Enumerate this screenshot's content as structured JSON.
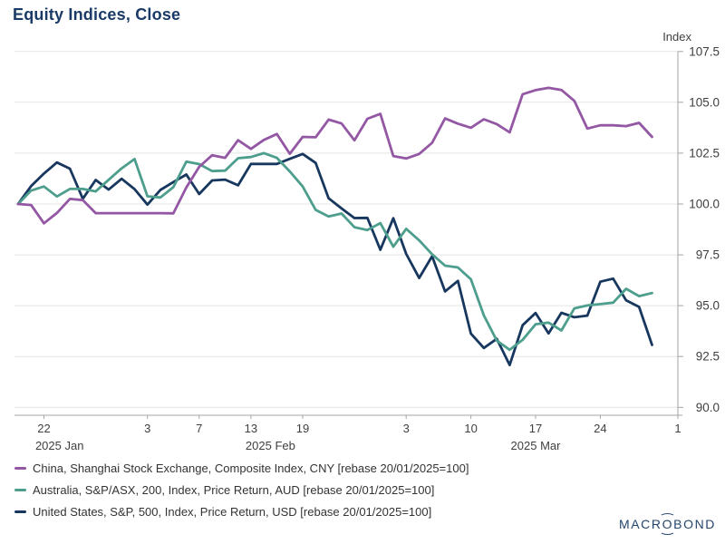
{
  "chart_data": {
    "type": "line",
    "title": "Equity Indices, Close",
    "title_color": "#1A3A67",
    "grid": true,
    "legend_position": "bottom-left",
    "y_axis": {
      "unit": "Index",
      "side": "right",
      "min": 90.0,
      "max": 107.5,
      "tick_step": 2.5,
      "ticks": [
        107.5,
        105.0,
        102.5,
        100.0,
        97.5,
        95.0,
        92.5,
        90.0
      ]
    },
    "x_axis": {
      "scale": "business-days",
      "start_date": "2025-01-20",
      "end_date": "2025-04-01",
      "day_ticks": [
        {
          "label": "22",
          "i": 2
        },
        {
          "label": "3",
          "i": 10
        },
        {
          "label": "7",
          "i": 14
        },
        {
          "label": "13",
          "i": 18
        },
        {
          "label": "19",
          "i": 22
        },
        {
          "label": "3",
          "i": 30
        },
        {
          "label": "10",
          "i": 35
        },
        {
          "label": "17",
          "i": 40
        },
        {
          "label": "24",
          "i": 45
        },
        {
          "label": "1",
          "i": 51
        }
      ],
      "month_labels": [
        {
          "label": "2025 Jan",
          "center_i": 3.2
        },
        {
          "label": "2025 Feb",
          "center_i": 19.5
        },
        {
          "label": "2025 Mar",
          "center_i": 40.0
        }
      ]
    },
    "dates": [
      "2025-01-20",
      "2025-01-21",
      "2025-01-22",
      "2025-01-23",
      "2025-01-24",
      "2025-01-27",
      "2025-01-28",
      "2025-01-29",
      "2025-01-30",
      "2025-01-31",
      "2025-02-03",
      "2025-02-04",
      "2025-02-05",
      "2025-02-06",
      "2025-02-07",
      "2025-02-10",
      "2025-02-11",
      "2025-02-12",
      "2025-02-13",
      "2025-02-14",
      "2025-02-17",
      "2025-02-18",
      "2025-02-19",
      "2025-02-20",
      "2025-02-21",
      "2025-02-24",
      "2025-02-25",
      "2025-02-26",
      "2025-02-27",
      "2025-02-28",
      "2025-03-03",
      "2025-03-04",
      "2025-03-05",
      "2025-03-06",
      "2025-03-07",
      "2025-03-10",
      "2025-03-11",
      "2025-03-12",
      "2025-03-13",
      "2025-03-14",
      "2025-03-17",
      "2025-03-18",
      "2025-03-19",
      "2025-03-20",
      "2025-03-21",
      "2025-03-24",
      "2025-03-25",
      "2025-03-26",
      "2025-03-27",
      "2025-03-28"
    ],
    "series": [
      {
        "name": "China, Shanghai Stock Exchange, Composite Index, CNY [rebase 20/01/2025=100]",
        "color": "#9357A4",
        "values": [
          100.0,
          99.95,
          99.05,
          99.56,
          100.25,
          100.19,
          99.55,
          99.55,
          99.55,
          99.55,
          99.55,
          99.55,
          99.54,
          100.81,
          101.83,
          102.4,
          102.27,
          103.14,
          102.71,
          103.15,
          103.44,
          102.47,
          103.3,
          103.28,
          104.15,
          103.96,
          103.13,
          104.19,
          104.43,
          102.36,
          102.24,
          102.46,
          103.01,
          104.21,
          103.95,
          103.75,
          104.17,
          103.93,
          103.52,
          105.4,
          105.6,
          105.71,
          105.61,
          105.07,
          103.71,
          103.87,
          103.87,
          103.83,
          103.99,
          103.3
        ]
      },
      {
        "name": "Australia, S&P/ASX, 200, Index, Price Return, AUD [rebase 20/01/2025=100]",
        "color": "#4D9E8C",
        "values": [
          100.0,
          100.66,
          100.86,
          100.37,
          100.74,
          100.74,
          100.62,
          101.19,
          101.75,
          102.21,
          100.38,
          100.32,
          100.83,
          102.08,
          101.96,
          101.62,
          101.64,
          102.25,
          102.31,
          102.5,
          102.27,
          101.6,
          100.86,
          99.71,
          99.39,
          99.53,
          98.86,
          98.72,
          99.06,
          97.9,
          98.78,
          98.21,
          97.53,
          96.97,
          96.88,
          96.3,
          94.52,
          93.28,
          92.83,
          93.32,
          94.09,
          94.17,
          93.78,
          94.87,
          95.01,
          95.08,
          95.15,
          95.83,
          95.47,
          95.62
        ]
      },
      {
        "name": "United States, S&P, 500, Index, Price Return, USD [rebase 20/01/2025=100]",
        "color": "#17375E",
        "values": [
          100.0,
          100.88,
          101.5,
          102.04,
          101.74,
          100.26,
          101.18,
          100.71,
          101.24,
          100.73,
          99.97,
          100.69,
          101.08,
          101.45,
          100.49,
          101.16,
          101.2,
          100.92,
          101.97,
          101.97,
          101.97,
          102.22,
          102.46,
          102.02,
          100.28,
          99.78,
          99.31,
          99.32,
          97.75,
          99.3,
          97.55,
          96.36,
          97.43,
          95.7,
          96.22,
          93.63,
          92.92,
          93.37,
          92.08,
          94.04,
          94.64,
          93.64,
          94.65,
          94.43,
          94.51,
          96.18,
          96.33,
          95.26,
          94.94,
          93.07
        ]
      }
    ]
  },
  "footer": {
    "logo": "MACROBOND"
  }
}
